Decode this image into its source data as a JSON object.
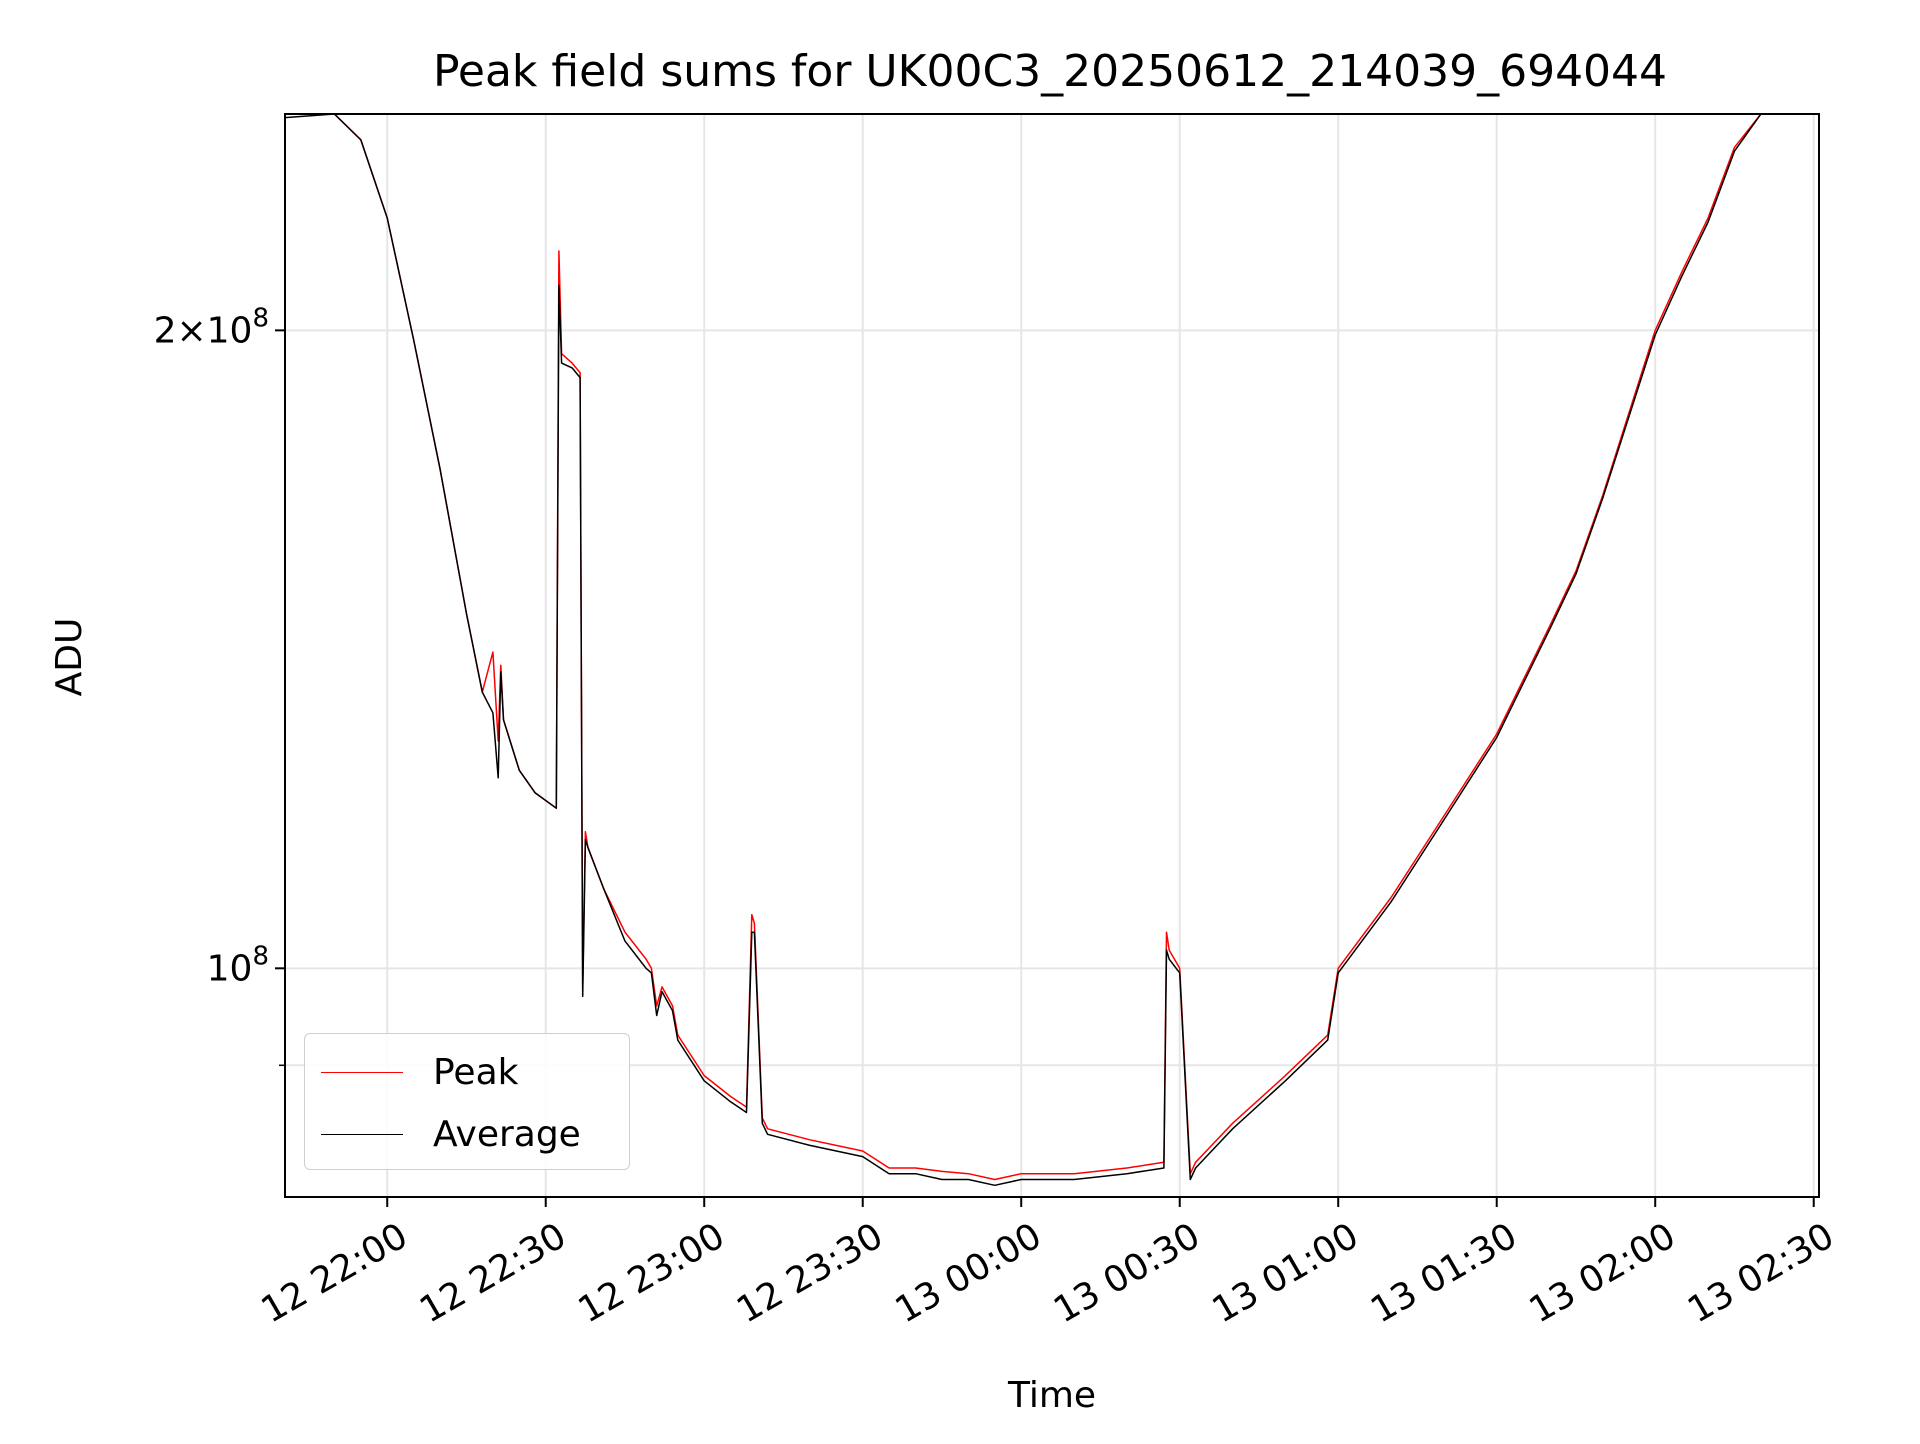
{
  "chart_data": {
    "type": "line",
    "title": "Peak field sums for UK00C3_20250612_214039_694044",
    "xlabel": "Time",
    "ylabel": "ADU",
    "y_scale": "log",
    "ylim": [
      78000000,
      253000000
    ],
    "xlim": [
      "12 21:40:39",
      "13 02:31:00"
    ],
    "x_ticks": [
      "12 22:00",
      "12 22:30",
      "12 23:00",
      "12 23:30",
      "13 00:00",
      "13 00:30",
      "13 01:00",
      "13 01:30",
      "13 02:00",
      "13 02:30"
    ],
    "y_ticks": [
      {
        "value": 100000000,
        "base": "10",
        "exp": "8",
        "prefix": ""
      },
      {
        "value": 200000000,
        "base": "10",
        "exp": "8",
        "prefix": "2×"
      }
    ],
    "y_minor_ticks": [
      90000000
    ],
    "grid": true,
    "legend_position": "lower-left",
    "series": [
      {
        "name": "Peak",
        "color": "#ff0000",
        "x": [
          "12 21:40:39",
          "12 21:50",
          "12 21:55",
          "12 22:00",
          "12 22:05",
          "12 22:10",
          "12 22:15",
          "12 22:18",
          "12 22:20",
          "12 22:21",
          "12 22:21:30",
          "12 22:22",
          "12 22:25",
          "12 22:28",
          "12 22:32",
          "12 22:32:30",
          "12 22:33",
          "12 22:35",
          "12 22:36:30",
          "12 22:37",
          "12 22:37:30",
          "12 22:38",
          "12 22:41",
          "12 22:45",
          "12 22:49",
          "12 22:50",
          "12 22:51",
          "12 22:52",
          "12 22:54",
          "12 22:55",
          "12 23:00",
          "12 23:05",
          "12 23:08",
          "12 23:09",
          "12 23:09:30",
          "12 23:11",
          "12 23:12",
          "12 23:20",
          "12 23:30",
          "12 23:35",
          "12 23:40",
          "12 23:45",
          "12 23:50",
          "12 23:55",
          "13 00:00",
          "13 00:10",
          "13 00:20",
          "13 00:27",
          "13 00:27:30",
          "13 00:28",
          "13 00:30",
          "13 00:32",
          "13 00:33",
          "13 00:40",
          "13 00:50",
          "13 00:58",
          "13 01:00",
          "13 01:10",
          "13 01:20",
          "13 01:30",
          "13 01:40",
          "13 01:45",
          "13 01:50",
          "13 02:00",
          "13 02:05",
          "13 02:10",
          "13 02:15",
          "13 02:20",
          "13 02:31"
        ],
        "y": [
          253000000,
          253000000,
          246000000,
          226000000,
          198000000,
          172000000,
          147000000,
          135000000,
          141000000,
          128000000,
          139000000,
          131000000,
          124000000,
          121000000,
          119000000,
          218000000,
          195000000,
          193000000,
          191000000,
          98000000,
          116000000,
          114000000,
          109000000,
          104000000,
          101000000,
          100000000,
          96000000,
          98000000,
          96000000,
          93000000,
          89000000,
          87000000,
          86000000,
          106000000,
          105000000,
          85000000,
          84000000,
          83000000,
          82000000,
          80500000,
          80500000,
          80200000,
          80000000,
          79500000,
          80000000,
          80000000,
          80500000,
          81000000,
          104000000,
          102000000,
          100000000,
          80000000,
          81000000,
          84500000,
          89000000,
          93000000,
          100000000,
          108000000,
          118000000,
          129000000,
          145000000,
          154000000,
          167000000,
          200000000,
          213000000,
          226000000,
          244000000,
          253000000,
          253000000
        ]
      },
      {
        "name": "Average",
        "color": "#000000",
        "x": [
          "12 21:40:39",
          "12 21:50",
          "12 21:55",
          "12 22:00",
          "12 22:05",
          "12 22:10",
          "12 22:15",
          "12 22:18",
          "12 22:20",
          "12 22:21",
          "12 22:21:30",
          "12 22:22",
          "12 22:25",
          "12 22:28",
          "12 22:32",
          "12 22:32:30",
          "12 22:33",
          "12 22:35",
          "12 22:36:30",
          "12 22:37",
          "12 22:37:30",
          "12 22:38",
          "12 22:41",
          "12 22:45",
          "12 22:49",
          "12 22:50",
          "12 22:51",
          "12 22:52",
          "12 22:54",
          "12 22:55",
          "12 23:00",
          "12 23:05",
          "12 23:08",
          "12 23:09",
          "12 23:09:30",
          "12 23:11",
          "12 23:12",
          "12 23:20",
          "12 23:30",
          "12 23:35",
          "12 23:40",
          "12 23:45",
          "12 23:50",
          "12 23:55",
          "13 00:00",
          "13 00:10",
          "13 00:20",
          "13 00:27",
          "13 00:27:30",
          "13 00:28",
          "13 00:30",
          "13 00:32",
          "13 00:33",
          "13 00:40",
          "13 00:50",
          "13 00:58",
          "13 01:00",
          "13 01:10",
          "13 01:20",
          "13 01:30",
          "13 01:40",
          "13 01:45",
          "13 01:50",
          "13 02:00",
          "13 02:05",
          "13 02:10",
          "13 02:15",
          "13 02:20",
          "13 02:31"
        ],
        "y": [
          252000000,
          253000000,
          246000000,
          226000000,
          198000000,
          172000000,
          147000000,
          135000000,
          132000000,
          123000000,
          138000000,
          131000000,
          124000000,
          121000000,
          119000000,
          210000000,
          193000000,
          192000000,
          190000000,
          97000000,
          115000000,
          114000000,
          109000000,
          103000000,
          100000000,
          99500000,
          95000000,
          97500000,
          95500000,
          92500000,
          88500000,
          86500000,
          85500000,
          104000000,
          104000000,
          84500000,
          83500000,
          82500000,
          81500000,
          80000000,
          80000000,
          79500000,
          79500000,
          79000000,
          79500000,
          79500000,
          80000000,
          80500000,
          102000000,
          101000000,
          99500000,
          79500000,
          80500000,
          84000000,
          88500000,
          92500000,
          99500000,
          107500000,
          117500000,
          128500000,
          144500000,
          153500000,
          166500000,
          199000000,
          212000000,
          225000000,
          243000000,
          253000000,
          253000000
        ]
      }
    ]
  }
}
